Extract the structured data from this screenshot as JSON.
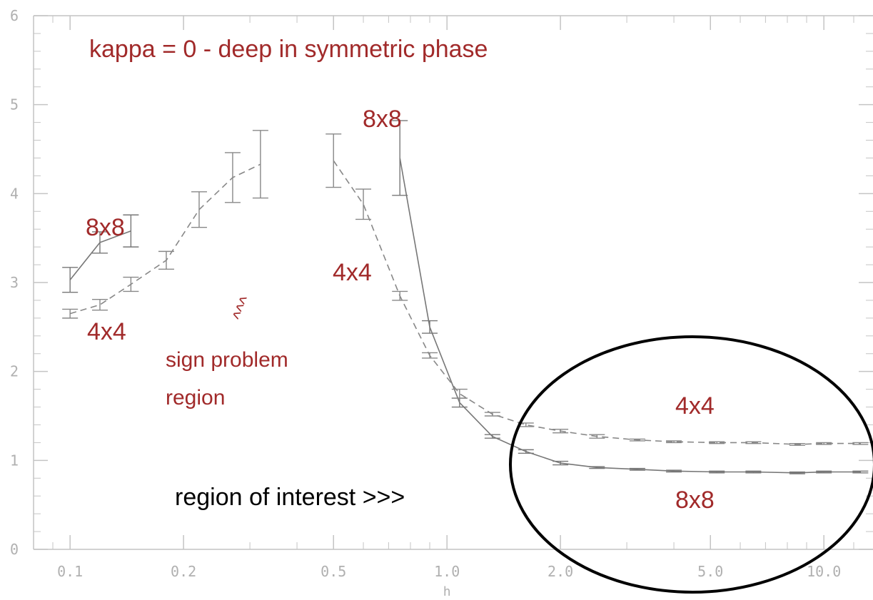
{
  "chart_data": {
    "type": "line",
    "xlabel": "h",
    "ylabel": "",
    "xscale": "log",
    "xlim": [
      0.08,
      13.5
    ],
    "ylim": [
      0,
      6
    ],
    "xticks": [
      {
        "value": 0.1,
        "label": "0.1"
      },
      {
        "value": 0.2,
        "label": "0.2"
      },
      {
        "value": 0.5,
        "label": "0.5"
      },
      {
        "value": 1.0,
        "label": "1.0"
      },
      {
        "value": 2.0,
        "label": "2.0"
      },
      {
        "value": 5.0,
        "label": "5.0"
      },
      {
        "value": 10.0,
        "label": "10.0"
      }
    ],
    "yticks": [
      {
        "value": 0,
        "label": "0"
      },
      {
        "value": 1,
        "label": "1"
      },
      {
        "value": 2,
        "label": "2"
      },
      {
        "value": 3,
        "label": "3"
      },
      {
        "value": 4,
        "label": "4"
      },
      {
        "value": 5,
        "label": "5"
      },
      {
        "value": 6,
        "label": "6"
      }
    ],
    "grid": false,
    "series": [
      {
        "id": "8x8",
        "style": "solid",
        "color": "#777777",
        "segments": [
          {
            "x": [
              0.1,
              0.12,
              0.145
            ],
            "y": [
              3.03,
              3.45,
              3.58
            ],
            "err": [
              0.14,
              0.12,
              0.18
            ]
          },
          {
            "x": [
              0.75,
              0.9,
              1.08,
              1.32,
              1.62,
              2.0,
              2.5,
              3.2,
              4.0,
              5.2,
              6.5,
              8.5,
              10.0,
              12.5
            ],
            "y": [
              4.4,
              2.5,
              1.65,
              1.27,
              1.1,
              0.97,
              0.92,
              0.9,
              0.88,
              0.87,
              0.87,
              0.86,
              0.87,
              0.87
            ],
            "err": [
              0.42,
              0.07,
              0.05,
              0.02,
              0.02,
              0.02,
              0.01,
              0.01,
              0.01,
              0.01,
              0.01,
              0.01,
              0.01,
              0.01
            ]
          }
        ]
      },
      {
        "id": "4x4",
        "style": "dashed",
        "color": "#888888",
        "segments": [
          {
            "x": [
              0.1,
              0.12,
              0.145,
              0.18,
              0.22,
              0.27,
              0.32
            ],
            "y": [
              2.65,
              2.75,
              2.98,
              3.25,
              3.82,
              4.18,
              4.33
            ],
            "err": [
              0.05,
              0.06,
              0.08,
              0.1,
              0.2,
              0.28,
              0.38
            ]
          },
          {
            "x": [
              0.5,
              0.6,
              0.75,
              0.9,
              1.08,
              1.32,
              1.62,
              2.0,
              2.5,
              3.2,
              4.0,
              5.2,
              6.5,
              8.5,
              10.0,
              12.5
            ],
            "y": [
              4.37,
              3.88,
              2.85,
              2.18,
              1.75,
              1.52,
              1.4,
              1.33,
              1.27,
              1.23,
              1.21,
              1.2,
              1.2,
              1.18,
              1.19,
              1.19
            ],
            "err": [
              0.3,
              0.17,
              0.05,
              0.03,
              0.05,
              0.02,
              0.02,
              0.02,
              0.02,
              0.01,
              0.01,
              0.01,
              0.01,
              0.01,
              0.01,
              0.01
            ]
          }
        ]
      }
    ],
    "annotations": {
      "title": "kappa = 0 - deep in symmetric phase",
      "label_8x8_top": "8x8",
      "label_8x8_left": "8x8",
      "label_4x4_left": "4x4",
      "label_4x4_mid": "4x4",
      "sign_problem_line1": "sign problem",
      "sign_problem_line2": "region",
      "arrows": "^^^",
      "region_of_interest": "region of interest >>>",
      "label_4x4_right": "4x4",
      "label_8x8_right": "8x8"
    }
  }
}
